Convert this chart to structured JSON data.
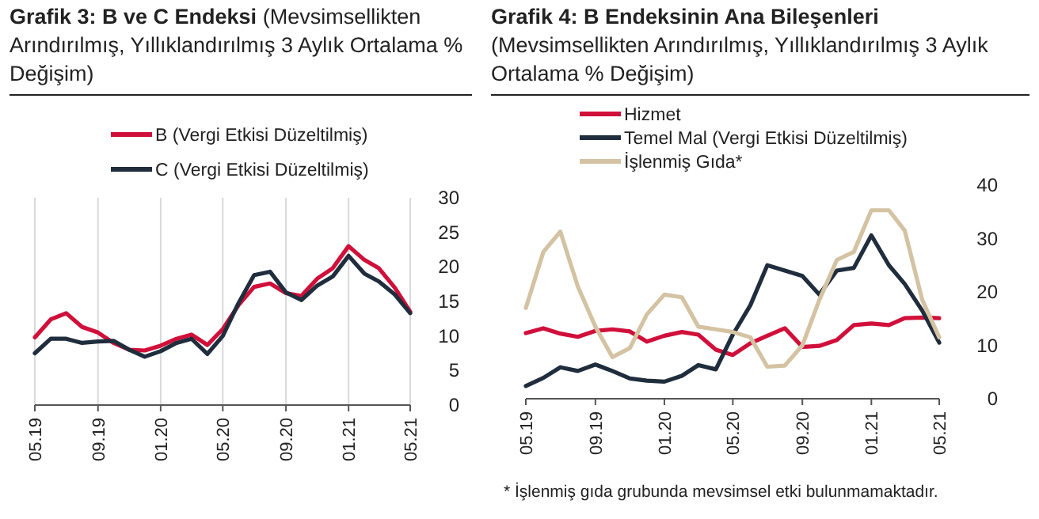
{
  "chart_data": [
    {
      "type": "line",
      "title": "Grafik 3: B ve C Endeksi",
      "subtitle": "(Mevsimsellikten Arındırılmış, Yıllıklandırılmış 3 Aylık Ortalama % Değişim)",
      "x": [
        "2019-05",
        "2019-06",
        "2019-07",
        "2019-08",
        "2019-09",
        "2019-10",
        "2019-11",
        "2019-12",
        "2020-01",
        "2020-02",
        "2020-03",
        "2020-04",
        "2020-05",
        "2020-06",
        "2020-07",
        "2020-08",
        "2020-09",
        "2020-10",
        "2020-11",
        "2020-12",
        "2021-01",
        "2021-02",
        "2021-03",
        "2021-04",
        "2021-05"
      ],
      "series": [
        {
          "name": "B (Vergi Etkisi Düzeltilmiş)",
          "color": "#d0103a",
          "values": [
            9.8,
            12.4,
            13.3,
            11.3,
            10.5,
            9.0,
            8.0,
            7.9,
            8.6,
            9.6,
            10.2,
            8.7,
            11.0,
            14.5,
            17.1,
            17.6,
            16.2,
            15.8,
            18.3,
            19.8,
            23.0,
            21.0,
            19.8,
            17.0,
            13.5
          ]
        },
        {
          "name": "C (Vergi Etkisi Düzeltilmiş)",
          "color": "#1f2d3d",
          "values": [
            7.5,
            9.6,
            9.6,
            9.0,
            9.2,
            9.3,
            8.0,
            7.0,
            7.8,
            9.0,
            9.6,
            7.4,
            10.0,
            14.8,
            18.8,
            19.3,
            16.3,
            15.2,
            17.3,
            18.6,
            21.6,
            19.0,
            17.9,
            16.0,
            13.3
          ]
        }
      ],
      "xlim": [
        "2019-05",
        "2021-05"
      ],
      "xticks": [
        {
          "value": "2019-05",
          "label": "05.19"
        },
        {
          "value": "2019-09",
          "label": "09.19"
        },
        {
          "value": "2020-01",
          "label": "01.20"
        },
        {
          "value": "2020-05",
          "label": "05.20"
        },
        {
          "value": "2020-09",
          "label": "09.20"
        },
        {
          "value": "2021-01",
          "label": "01.21"
        },
        {
          "value": "2021-05",
          "label": "05.21"
        }
      ],
      "ylim": [
        0,
        30
      ],
      "yticks": [
        0,
        5,
        10,
        15,
        20,
        25,
        30
      ],
      "grid": "x",
      "legend": "top",
      "marker": "none",
      "line_style": "solid"
    },
    {
      "type": "line",
      "title": "Grafik 4: B Endeksinin Ana Bileşenleri",
      "subtitle": "(Mevsimsellikten Arındırılmış, Yıllıklandırılmış 3 Aylık Ortalama % Değişim)",
      "x": [
        "2019-05",
        "2019-06",
        "2019-07",
        "2019-08",
        "2019-09",
        "2019-10",
        "2019-11",
        "2019-12",
        "2020-01",
        "2020-02",
        "2020-03",
        "2020-04",
        "2020-05",
        "2020-06",
        "2020-07",
        "2020-08",
        "2020-09",
        "2020-10",
        "2020-11",
        "2020-12",
        "2021-01",
        "2021-02",
        "2021-03",
        "2021-04",
        "2021-05"
      ],
      "series": [
        {
          "name": "Hizmet",
          "color": "#d0103a",
          "values": [
            12.3,
            13.2,
            12.2,
            11.6,
            12.7,
            13.0,
            12.6,
            10.7,
            11.8,
            12.5,
            12.0,
            9.2,
            8.2,
            10.4,
            11.8,
            13.2,
            9.7,
            9.9,
            11.0,
            13.8,
            14.1,
            13.8,
            15.1,
            15.2,
            15.1
          ]
        },
        {
          "name": "Temel Mal (Vergi Etkisi Düzeltilmiş)",
          "color": "#1f2d3d",
          "values": [
            2.4,
            3.9,
            5.9,
            5.2,
            6.4,
            5.2,
            3.8,
            3.4,
            3.2,
            4.3,
            6.3,
            5.5,
            12.0,
            17.5,
            25.0,
            24.0,
            23.0,
            19.5,
            24.0,
            24.5,
            30.6,
            25.0,
            21.5,
            16.5,
            10.5
          ]
        },
        {
          "name": "İşlenmiş Gıda*",
          "color": "#d4c3a3",
          "values": [
            17.0,
            27.5,
            31.3,
            21.0,
            13.5,
            7.8,
            9.5,
            15.8,
            19.5,
            19.0,
            13.5,
            13.0,
            12.5,
            11.5,
            6.0,
            6.2,
            10.0,
            18.5,
            26.0,
            27.5,
            35.3,
            35.3,
            31.5,
            18.5,
            11.5
          ]
        }
      ],
      "xlim": [
        "2019-05",
        "2021-05"
      ],
      "xticks": [
        {
          "value": "2019-05",
          "label": "05.19"
        },
        {
          "value": "2019-09",
          "label": "09.19"
        },
        {
          "value": "2020-01",
          "label": "01.20"
        },
        {
          "value": "2020-05",
          "label": "05.20"
        },
        {
          "value": "2020-09",
          "label": "09.20"
        },
        {
          "value": "2021-01",
          "label": "01.21"
        },
        {
          "value": "2021-05",
          "label": "05.21"
        }
      ],
      "ylim": [
        0,
        40
      ],
      "yticks": [
        0,
        10,
        20,
        30,
        40
      ],
      "legend": "top",
      "marker": "none",
      "line_style": "solid",
      "annotations": [
        "* İşlenmiş gıda grubunda mevsimsel etki bulunmamaktadır."
      ]
    }
  ]
}
